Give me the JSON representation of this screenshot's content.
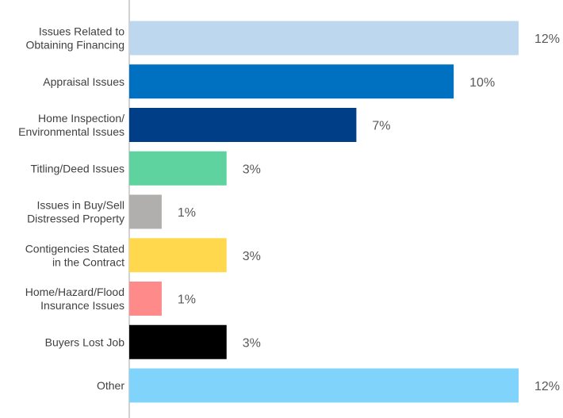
{
  "chart_data": {
    "type": "bar",
    "orientation": "horizontal",
    "title": "",
    "xlabel": "",
    "ylabel": "",
    "xlim": [
      0,
      12
    ],
    "grid": false,
    "legend": "none",
    "categories": [
      "Issues Related to\nObtaining Financing",
      "Appraisal Issues",
      "Home Inspection/\nEnvironmental Issues",
      "Titling/Deed Issues",
      "Issues in Buy/Sell\nDistressed Property",
      "Contigencies Stated\nin the Contract",
      "Home/Hazard/Flood\nInsurance Issues",
      "Buyers Lost Job",
      "Other"
    ],
    "values": [
      12,
      10,
      7,
      3,
      1,
      3,
      1,
      3,
      12
    ],
    "value_labels": [
      "12%",
      "10%",
      "7%",
      "3%",
      "1%",
      "3%",
      "1%",
      "3%",
      "12%"
    ],
    "colors": [
      "#bdd7ee",
      "#0070c0",
      "#003f87",
      "#5fd39f",
      "#b1afad",
      "#ffd84d",
      "#ff8a8a",
      "#000000",
      "#80d3fa"
    ]
  }
}
